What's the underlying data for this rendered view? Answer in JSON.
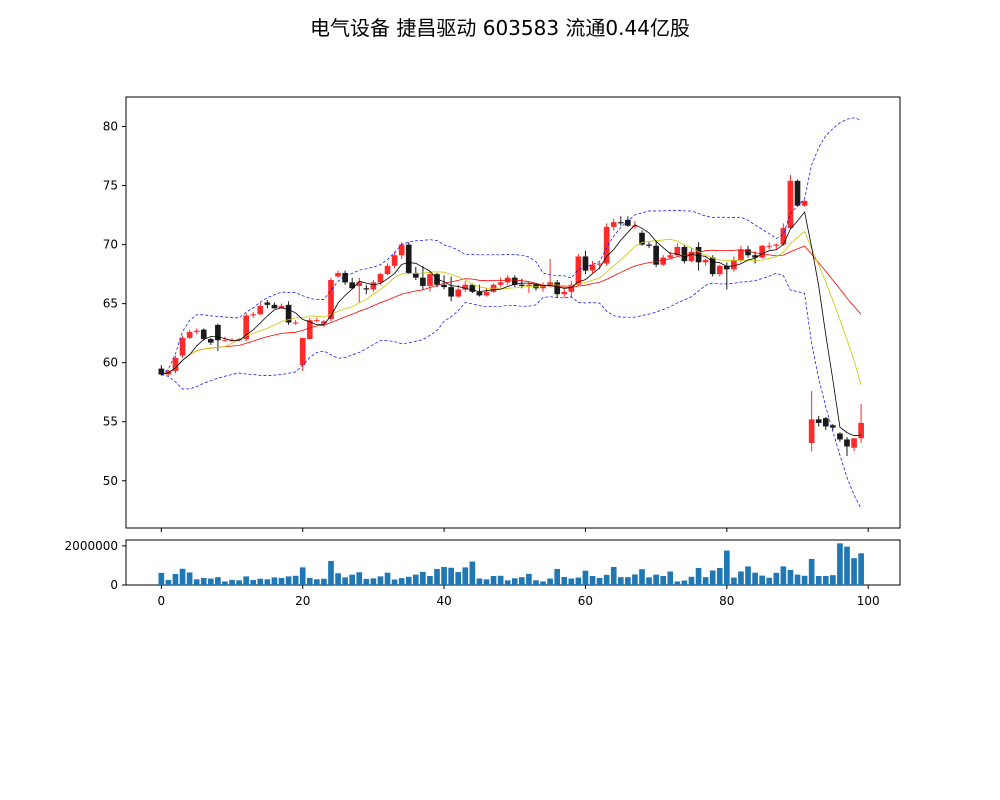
{
  "title": "电气设备 捷昌驱动 603583 流通0.44亿股",
  "colors": {
    "up": "#ff2a2a",
    "down": "#1a1a1a",
    "ma_short": "#000000",
    "ma_mid": "#c8c800",
    "ma_long": "#ff0000",
    "boll": "#0000ff",
    "volume": "#1f77b4"
  },
  "chart_data": [
    {
      "type": "candlestick",
      "name": "price",
      "ylim": [
        46,
        82.5
      ],
      "xlim": [
        -5,
        104.5
      ],
      "yticks": [
        50,
        55,
        60,
        65,
        70,
        75,
        80
      ],
      "ohlc_columns": [
        "open",
        "high",
        "low",
        "close"
      ],
      "ohlc": [
        [
          59.5,
          59.8,
          58.9,
          59.0
        ],
        [
          59.0,
          59.4,
          58.9,
          59.3
        ],
        [
          59.3,
          60.6,
          59.1,
          60.4
        ],
        [
          60.6,
          62.3,
          60.4,
          62.1
        ],
        [
          62.1,
          62.8,
          62.0,
          62.6
        ],
        [
          62.6,
          62.9,
          62.4,
          62.7
        ],
        [
          62.8,
          62.9,
          61.9,
          62.0
        ],
        [
          62.0,
          62.1,
          61.5,
          61.7
        ],
        [
          63.2,
          63.3,
          61.0,
          61.9
        ],
        [
          61.9,
          62.2,
          61.8,
          61.9
        ],
        [
          61.9,
          62.1,
          61.8,
          61.9
        ],
        [
          61.9,
          62.1,
          61.8,
          62.0
        ],
        [
          62.0,
          64.2,
          61.8,
          64.0
        ],
        [
          64.0,
          64.3,
          63.8,
          64.1
        ],
        [
          64.1,
          65.1,
          64.0,
          64.8
        ],
        [
          65.1,
          65.3,
          64.6,
          64.9
        ],
        [
          64.9,
          65.1,
          64.6,
          64.6
        ],
        [
          64.6,
          65.0,
          64.6,
          64.8
        ],
        [
          64.9,
          65.2,
          63.2,
          63.4
        ],
        [
          63.4,
          63.6,
          63.2,
          63.4
        ],
        [
          59.8,
          62.0,
          59.3,
          62.1
        ],
        [
          62.0,
          63.8,
          62.0,
          63.6
        ],
        [
          63.6,
          63.8,
          63.4,
          63.6
        ],
        [
          63.3,
          63.6,
          63.0,
          63.5
        ],
        [
          63.7,
          67.2,
          63.5,
          67.0
        ],
        [
          67.3,
          67.8,
          67.2,
          67.6
        ],
        [
          67.6,
          67.8,
          66.6,
          66.8
        ],
        [
          66.8,
          67.2,
          66.2,
          66.3
        ],
        [
          66.5,
          67.2,
          65.1,
          66.8
        ],
        [
          66.3,
          66.6,
          65.8,
          66.2
        ],
        [
          66.2,
          67.0,
          66.0,
          66.8
        ],
        [
          66.8,
          67.6,
          66.6,
          67.5
        ],
        [
          67.5,
          68.4,
          67.4,
          68.2
        ],
        [
          68.2,
          69.4,
          68.0,
          69.1
        ],
        [
          69.1,
          70.2,
          68.8,
          70.0
        ],
        [
          70.0,
          70.2,
          67.5,
          67.6
        ],
        [
          67.6,
          68.1,
          67.0,
          67.2
        ],
        [
          67.2,
          68.2,
          66.2,
          66.5
        ],
        [
          66.5,
          67.8,
          66.0,
          67.5
        ],
        [
          67.5,
          67.6,
          66.4,
          66.6
        ],
        [
          66.6,
          67.4,
          66.2,
          66.4
        ],
        [
          66.4,
          67.3,
          65.2,
          65.6
        ],
        [
          65.6,
          66.6,
          65.5,
          66.2
        ],
        [
          66.2,
          66.9,
          66.0,
          66.6
        ],
        [
          66.6,
          66.7,
          65.9,
          66.0
        ],
        [
          66.0,
          66.6,
          65.6,
          65.7
        ],
        [
          65.7,
          66.3,
          65.6,
          66.0
        ],
        [
          66.0,
          66.7,
          65.9,
          66.6
        ],
        [
          66.6,
          67.2,
          66.4,
          66.8
        ],
        [
          66.8,
          67.4,
          66.6,
          67.2
        ],
        [
          67.2,
          67.4,
          66.4,
          66.6
        ],
        [
          66.6,
          67.1,
          66.3,
          66.5
        ],
        [
          66.5,
          66.9,
          65.9,
          66.6
        ],
        [
          66.6,
          66.7,
          66.1,
          66.3
        ],
        [
          66.3,
          66.8,
          66.0,
          66.6
        ],
        [
          66.6,
          68.8,
          66.4,
          66.8
        ],
        [
          66.8,
          67.0,
          65.5,
          65.8
        ],
        [
          65.8,
          66.4,
          65.5,
          66.0
        ],
        [
          66.0,
          66.9,
          65.5,
          66.6
        ],
        [
          66.6,
          69.2,
          66.5,
          69.0
        ],
        [
          69.0,
          69.5,
          67.5,
          67.8
        ],
        [
          67.8,
          68.6,
          67.6,
          68.3
        ],
        [
          68.3,
          68.5,
          67.9,
          68.4
        ],
        [
          68.4,
          71.8,
          68.2,
          71.5
        ],
        [
          71.5,
          72.2,
          71.2,
          71.9
        ],
        [
          71.9,
          72.4,
          71.6,
          71.8
        ],
        [
          72.1,
          72.4,
          71.5,
          71.6
        ],
        [
          71.6,
          72.0,
          71.3,
          71.6
        ],
        [
          71.0,
          71.2,
          69.9,
          70.0
        ],
        [
          70.0,
          70.2,
          69.7,
          69.9
        ],
        [
          69.9,
          70.3,
          68.1,
          68.3
        ],
        [
          68.3,
          69.1,
          68.2,
          68.9
        ],
        [
          68.9,
          69.4,
          68.8,
          69.1
        ],
        [
          69.1,
          70.1,
          69.0,
          69.8
        ],
        [
          69.8,
          70.0,
          68.4,
          68.6
        ],
        [
          68.6,
          69.7,
          68.5,
          69.4
        ],
        [
          69.8,
          70.2,
          67.8,
          68.5
        ],
        [
          68.5,
          68.8,
          68.2,
          68.7
        ],
        [
          68.9,
          69.1,
          67.3,
          67.5
        ],
        [
          67.5,
          68.3,
          67.3,
          68.2
        ],
        [
          68.2,
          68.5,
          66.2,
          67.9
        ],
        [
          67.9,
          69.0,
          67.7,
          68.7
        ],
        [
          68.7,
          69.9,
          68.5,
          69.6
        ],
        [
          69.6,
          69.9,
          68.9,
          69.1
        ],
        [
          69.1,
          69.4,
          68.4,
          68.9
        ],
        [
          68.9,
          70.0,
          68.8,
          69.9
        ],
        [
          69.9,
          70.2,
          69.6,
          69.9
        ],
        [
          69.9,
          70.1,
          69.6,
          70.0
        ],
        [
          70.0,
          71.8,
          69.9,
          71.4
        ],
        [
          71.4,
          75.9,
          71.3,
          75.4
        ],
        [
          75.4,
          75.5,
          73.2,
          73.3
        ],
        [
          73.3,
          73.8,
          73.2,
          73.7
        ],
        [
          53.2,
          57.6,
          52.5,
          55.2
        ],
        [
          55.2,
          55.5,
          54.6,
          54.9
        ],
        [
          55.3,
          55.4,
          54.3,
          54.6
        ],
        [
          54.7,
          54.8,
          54.3,
          54.5
        ],
        [
          54.0,
          54.1,
          53.3,
          53.5
        ],
        [
          53.5,
          53.7,
          52.1,
          52.9
        ],
        [
          52.8,
          53.6,
          52.5,
          53.6
        ],
        [
          53.6,
          56.5,
          53.2,
          54.9
        ]
      ]
    },
    {
      "type": "bar",
      "name": "volume",
      "ylim": [
        0,
        2300000
      ],
      "yticks": [
        0,
        2000000
      ],
      "xticks": [
        0,
        20,
        40,
        60,
        80,
        100
      ],
      "values": [
        620000,
        260000,
        560000,
        830000,
        640000,
        290000,
        360000,
        330000,
        400000,
        180000,
        260000,
        240000,
        440000,
        260000,
        320000,
        290000,
        390000,
        360000,
        440000,
        470000,
        900000,
        360000,
        290000,
        320000,
        1230000,
        600000,
        390000,
        530000,
        650000,
        310000,
        340000,
        440000,
        630000,
        280000,
        350000,
        420000,
        530000,
        670000,
        460000,
        820000,
        920000,
        880000,
        660000,
        900000,
        1200000,
        330000,
        290000,
        460000,
        470000,
        240000,
        340000,
        400000,
        570000,
        240000,
        180000,
        330000,
        820000,
        410000,
        330000,
        380000,
        730000,
        460000,
        360000,
        520000,
        920000,
        400000,
        400000,
        540000,
        810000,
        390000,
        530000,
        460000,
        690000,
        180000,
        230000,
        420000,
        870000,
        400000,
        740000,
        870000,
        1760000,
        380000,
        690000,
        950000,
        630000,
        480000,
        370000,
        620000,
        950000,
        770000,
        530000,
        470000,
        1330000,
        460000,
        460000,
        500000,
        2130000,
        1960000,
        1370000,
        1620000
      ]
    }
  ]
}
